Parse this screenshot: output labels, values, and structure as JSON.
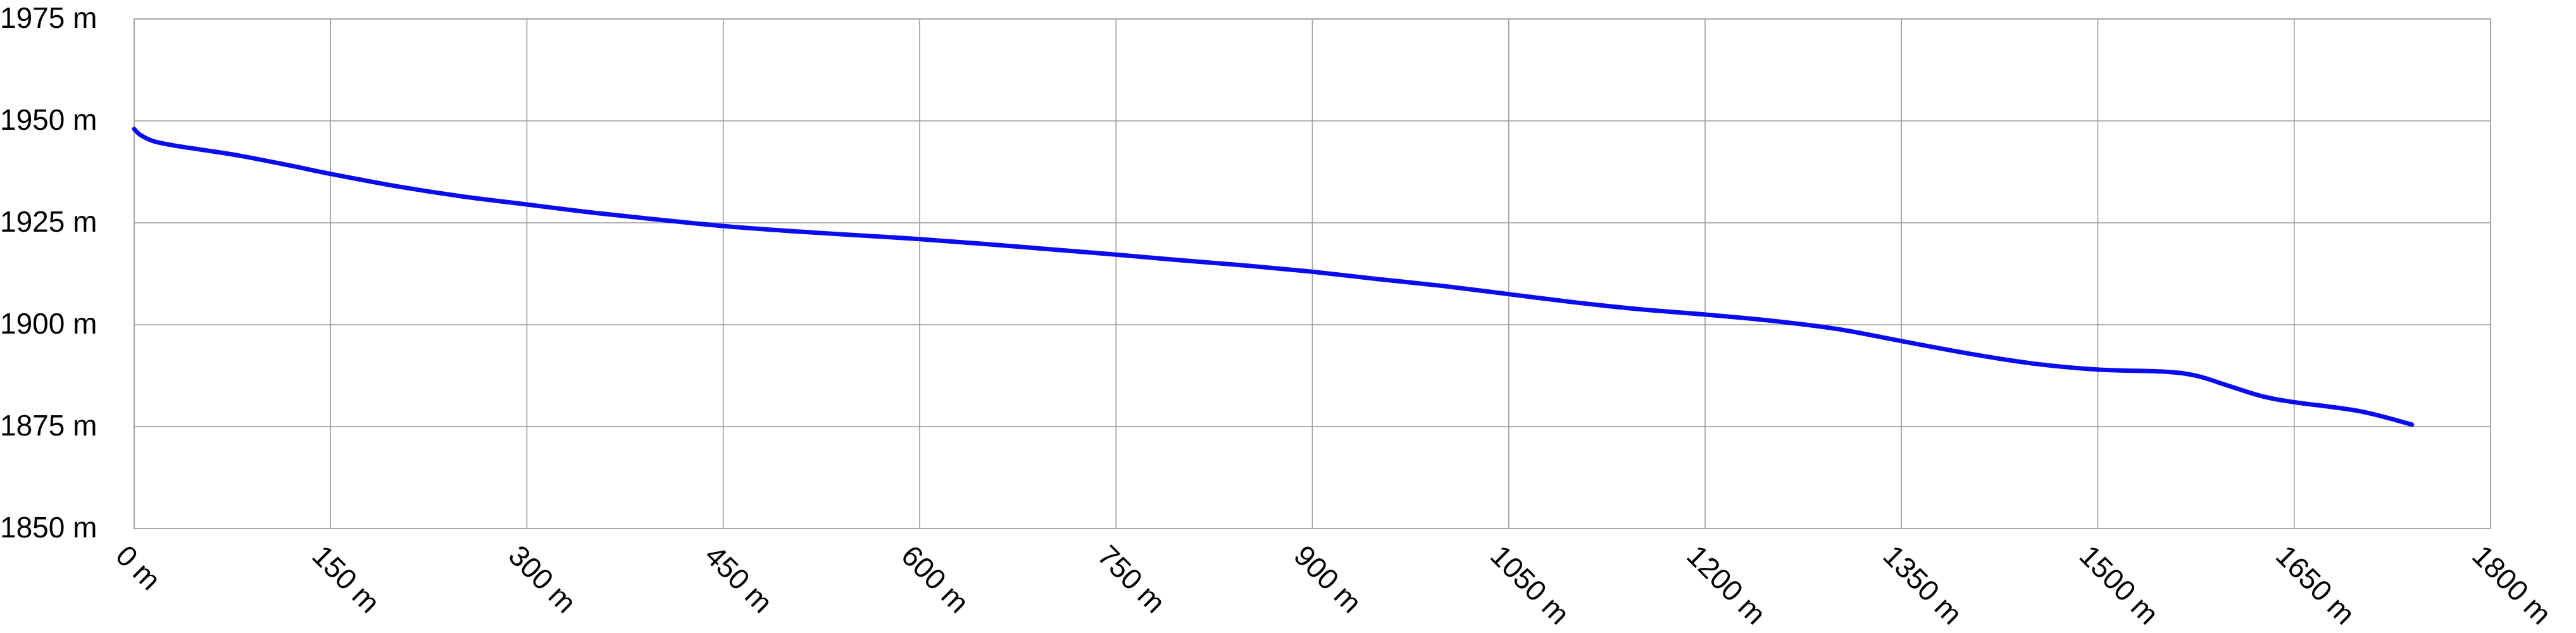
{
  "chart_data": {
    "type": "line",
    "title": "",
    "xlabel": "",
    "ylabel": "",
    "xlim": [
      0,
      1800
    ],
    "ylim": [
      1850,
      1975
    ],
    "x_ticks": [
      0,
      150,
      300,
      450,
      600,
      750,
      900,
      1050,
      1200,
      1350,
      1500,
      1650,
      1800
    ],
    "y_ticks": [
      1850,
      1875,
      1900,
      1925,
      1950,
      1975
    ],
    "x_tick_labels": [
      "0 m",
      "150 m",
      "300 m",
      "450 m",
      "600 m",
      "750 m",
      "900 m",
      "1050 m",
      "1200 m",
      "1350 m",
      "1500 m",
      "1650 m",
      "1800 m"
    ],
    "y_tick_labels": [
      "1850 m",
      "1875 m",
      "1900 m",
      "1925 m",
      "1950 m",
      "1975 m"
    ],
    "grid": true,
    "colors": {
      "line": "#0b0bf0",
      "grid": "#9c9c9c",
      "text": "#000000",
      "background": "#ffffff"
    },
    "series": [
      {
        "x": [
          0,
          5,
          15,
          30,
          50,
          80,
          120,
          150,
          200,
          250,
          300,
          350,
          400,
          450,
          500,
          550,
          600,
          650,
          700,
          750,
          800,
          850,
          900,
          950,
          1000,
          1050,
          1100,
          1150,
          1200,
          1250,
          1300,
          1350,
          1400,
          1450,
          1500,
          1550,
          1575,
          1600,
          1625,
          1650,
          1700,
          1740
        ],
        "y": [
          1948,
          1946.5,
          1945,
          1944,
          1943,
          1941.5,
          1939,
          1937,
          1934,
          1931.5,
          1929.5,
          1927.5,
          1925.8,
          1924.2,
          1923,
          1922,
          1921,
          1919.8,
          1918.5,
          1917.2,
          1915.8,
          1914.5,
          1913,
          1911.2,
          1909.5,
          1907.5,
          1905.5,
          1903.8,
          1902.5,
          1901,
          1899,
          1896,
          1893,
          1890.5,
          1889,
          1888.5,
          1887.5,
          1885,
          1882.5,
          1881,
          1878.8,
          1875.5
        ]
      }
    ]
  }
}
